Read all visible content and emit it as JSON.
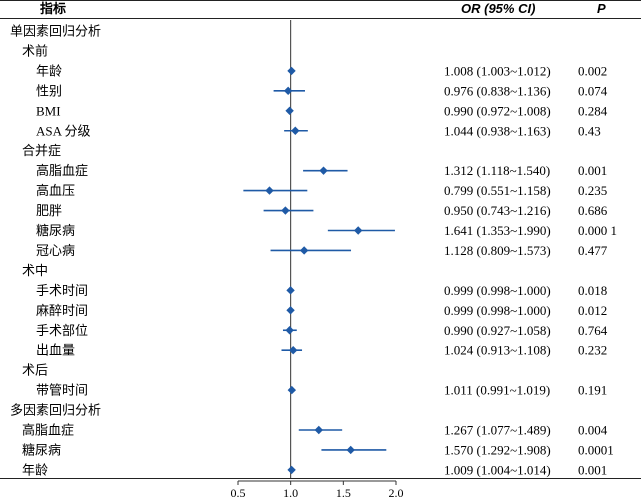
{
  "headers": {
    "indicator": "指标",
    "or_ci": "OR (95% CI)",
    "p": "P"
  },
  "chart_data": {
    "type": "forest",
    "xlabel": "",
    "xlim": [
      0.5,
      2.0
    ],
    "xticks": [
      0.5,
      1.0,
      1.5,
      2.0
    ],
    "xtick_labels": [
      "0.5",
      "1.0",
      "1.5",
      "2.0"
    ],
    "reference_line": 1.0,
    "marker_color": "#1f5aa6",
    "rows": [
      {
        "label": "单因素回归分析",
        "level": 0
      },
      {
        "label": "术前",
        "level": 1
      },
      {
        "label": "年龄",
        "level": 2,
        "or": 1.008,
        "lo": 1.003,
        "hi": 1.012,
        "ci_text": "1.008 (1.003~1.012)",
        "p": "0.002"
      },
      {
        "label": "性别",
        "level": 2,
        "or": 0.976,
        "lo": 0.838,
        "hi": 1.136,
        "ci_text": "0.976 (0.838~1.136)",
        "p": "0.074"
      },
      {
        "label": "BMI",
        "level": 2,
        "or": 0.99,
        "lo": 0.972,
        "hi": 1.008,
        "ci_text": "0.990 (0.972~1.008)",
        "p": "0.284"
      },
      {
        "label": "ASA 分级",
        "level": 2,
        "or": 1.044,
        "lo": 0.938,
        "hi": 1.163,
        "ci_text": "1.044 (0.938~1.163)",
        "p": "0.43"
      },
      {
        "label": "合并症",
        "level": 1
      },
      {
        "label": "高脂血症",
        "level": 2,
        "or": 1.312,
        "lo": 1.118,
        "hi": 1.54,
        "ci_text": "1.312 (1.118~1.540)",
        "p": "0.001"
      },
      {
        "label": "高血压",
        "level": 2,
        "or": 0.799,
        "lo": 0.551,
        "hi": 1.158,
        "ci_text": "0.799 (0.551~1.158)",
        "p": "0.235"
      },
      {
        "label": "肥胖",
        "level": 2,
        "or": 0.95,
        "lo": 0.743,
        "hi": 1.216,
        "ci_text": "0.950 (0.743~1.216)",
        "p": "0.686"
      },
      {
        "label": "糖尿病",
        "level": 2,
        "or": 1.641,
        "lo": 1.353,
        "hi": 1.99,
        "ci_text": "1.641 (1.353~1.990)",
        "p": "0.000 1"
      },
      {
        "label": "冠心病",
        "level": 2,
        "or": 1.128,
        "lo": 0.809,
        "hi": 1.573,
        "ci_text": "1.128 (0.809~1.573)",
        "p": "0.477"
      },
      {
        "label": "术中",
        "level": 1
      },
      {
        "label": "手术时间",
        "level": 2,
        "or": 0.999,
        "lo": 0.998,
        "hi": 1.0,
        "ci_text": "0.999 (0.998~1.000)",
        "p": "0.018"
      },
      {
        "label": "麻醉时间",
        "level": 2,
        "or": 0.999,
        "lo": 0.998,
        "hi": 1.0,
        "ci_text": "0.999 (0.998~1.000)",
        "p": "0.012"
      },
      {
        "label": "手术部位",
        "level": 2,
        "or": 0.99,
        "lo": 0.927,
        "hi": 1.058,
        "ci_text": "0.990 (0.927~1.058)",
        "p": "0.764"
      },
      {
        "label": "出血量",
        "level": 2,
        "or": 1.024,
        "lo": 0.913,
        "hi": 1.108,
        "ci_text": "1.024 (0.913~1.108)",
        "p": "0.232"
      },
      {
        "label": "术后",
        "level": 1
      },
      {
        "label": "带管时间",
        "level": 2,
        "or": 1.011,
        "lo": 0.991,
        "hi": 1.019,
        "ci_text": "1.011 (0.991~1.019)",
        "p": "0.191"
      },
      {
        "label": "多因素回归分析",
        "level": 0
      },
      {
        "label": "高脂血症",
        "level": 1,
        "or": 1.267,
        "lo": 1.077,
        "hi": 1.489,
        "ci_text": "1.267 (1.077~1.489)",
        "p": "0.004"
      },
      {
        "label": "糖尿病",
        "level": 1,
        "or": 1.57,
        "lo": 1.292,
        "hi": 1.908,
        "ci_text": "1.570 (1.292~1.908)",
        "p": "0.0001"
      },
      {
        "label": "年龄",
        "level": 1,
        "or": 1.009,
        "lo": 1.004,
        "hi": 1.014,
        "ci_text": "1.009 (1.004~1.014)",
        "p": "0.001"
      }
    ]
  }
}
